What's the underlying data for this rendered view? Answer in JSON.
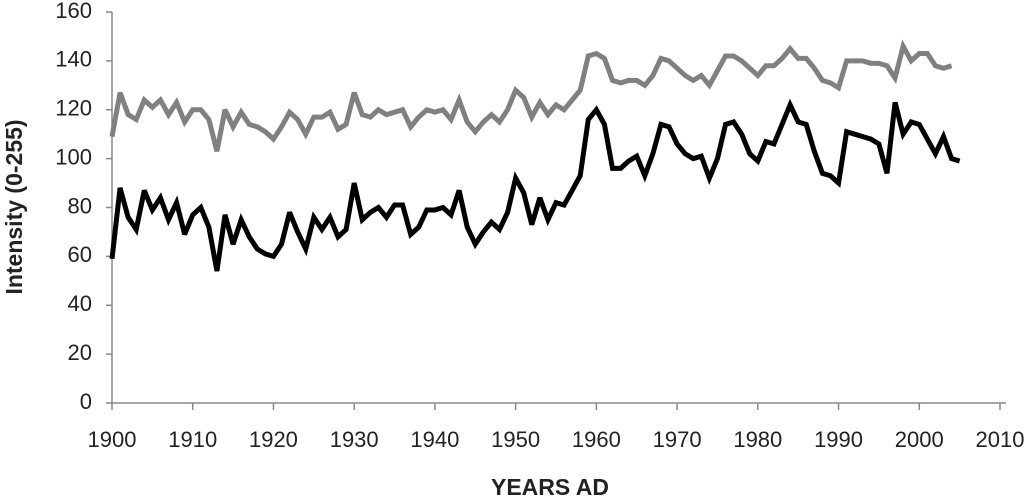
{
  "chart_data": {
    "type": "line",
    "xlabel": "YEARS AD",
    "ylabel": "Intensity (0-255)",
    "x": [
      1900,
      1901,
      1902,
      1903,
      1904,
      1905,
      1906,
      1907,
      1908,
      1909,
      1910,
      1911,
      1912,
      1913,
      1914,
      1915,
      1916,
      1917,
      1918,
      1919,
      1920,
      1921,
      1922,
      1923,
      1924,
      1925,
      1926,
      1927,
      1928,
      1929,
      1930,
      1931,
      1932,
      1933,
      1934,
      1935,
      1936,
      1937,
      1938,
      1939,
      1940,
      1941,
      1942,
      1943,
      1944,
      1945,
      1946,
      1947,
      1948,
      1949,
      1950,
      1951,
      1952,
      1953,
      1954,
      1955,
      1956,
      1957,
      1958,
      1959,
      1960,
      1961,
      1962,
      1963,
      1964,
      1965,
      1966,
      1967,
      1968,
      1969,
      1970,
      1971,
      1972,
      1973,
      1974,
      1975,
      1976,
      1977,
      1978,
      1979,
      1980,
      1981,
      1982,
      1983,
      1984,
      1985,
      1986,
      1987,
      1988,
      1989,
      1990,
      1991,
      1992,
      1993,
      1994,
      1995,
      1996,
      1997,
      1998,
      1999,
      2000,
      2001,
      2002,
      2003,
      2004,
      2005
    ],
    "series": [
      {
        "color": "#808080",
        "values": [
          109,
          127,
          118,
          116,
          124,
          121,
          124,
          118,
          123,
          115,
          120,
          120,
          116,
          103,
          120,
          113,
          119,
          114,
          113,
          111,
          108,
          113,
          119,
          116,
          110,
          117,
          117,
          119,
          112,
          114,
          127,
          118,
          117,
          120,
          118,
          119,
          120,
          113,
          117,
          120,
          119,
          120,
          116,
          124,
          115,
          111,
          115,
          118,
          115,
          120,
          128,
          125,
          117,
          123,
          118,
          122,
          120,
          124,
          128,
          142,
          143,
          141,
          132,
          131,
          132,
          132,
          130,
          134,
          141,
          140,
          137,
          134,
          132,
          134,
          130,
          136,
          142,
          142,
          140,
          137,
          134,
          138,
          138,
          141,
          145,
          141,
          141,
          137,
          132,
          131,
          129,
          140,
          140,
          140,
          139,
          139,
          138,
          133,
          146,
          140,
          143,
          143,
          138,
          137,
          138,
          null
        ]
      },
      {
        "color": "#000000",
        "values": [
          59,
          88,
          76,
          71,
          87,
          79,
          84,
          75,
          82,
          69,
          77,
          80,
          72,
          54,
          77,
          65,
          75,
          68,
          63,
          61,
          60,
          65,
          78,
          70,
          63,
          76,
          71,
          76,
          68,
          71,
          90,
          75,
          78,
          80,
          76,
          81,
          81,
          69,
          72,
          79,
          79,
          80,
          77,
          87,
          72,
          65,
          70,
          74,
          71,
          78,
          92,
          86,
          73,
          84,
          75,
          82,
          81,
          87,
          93,
          116,
          120,
          114,
          96,
          96,
          99,
          101,
          93,
          102,
          114,
          113,
          106,
          102,
          100,
          101,
          92,
          100,
          114,
          115,
          110,
          102,
          99,
          107,
          106,
          114,
          122,
          115,
          114,
          103,
          94,
          93,
          90,
          111,
          110,
          109,
          108,
          106,
          94,
          123,
          110,
          115,
          114,
          108,
          102,
          109,
          100,
          99
        ]
      }
    ],
    "xlim": [
      1900,
      2010
    ],
    "xticks": [
      1900,
      1910,
      1920,
      1930,
      1940,
      1950,
      1960,
      1970,
      1980,
      1990,
      2000,
      2010
    ],
    "ylim": [
      0,
      160
    ],
    "yticks": [
      0,
      20,
      40,
      60,
      80,
      100,
      120,
      140,
      160
    ],
    "grid": false
  }
}
